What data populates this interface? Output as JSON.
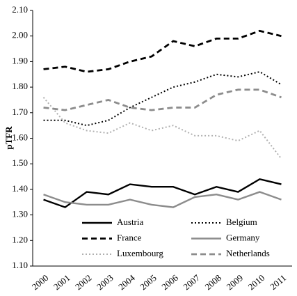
{
  "chart_data": {
    "type": "line",
    "y_label": "pTFR",
    "categories": [
      "2000",
      "2001",
      "2002",
      "2003",
      "2004",
      "2005",
      "2006",
      "2007",
      "2008",
      "2009",
      "2010",
      "2011"
    ],
    "series": [
      {
        "name": "Austria",
        "color": "#000000",
        "dash": "solid",
        "values": [
          1.36,
          1.33,
          1.39,
          1.38,
          1.42,
          1.41,
          1.41,
          1.38,
          1.41,
          1.39,
          1.44,
          1.42
        ]
      },
      {
        "name": "Belgium",
        "color": "#000000",
        "dash": "dotted",
        "values": [
          1.67,
          1.67,
          1.65,
          1.67,
          1.72,
          1.76,
          1.8,
          1.82,
          1.85,
          1.84,
          1.86,
          1.81
        ]
      },
      {
        "name": "France",
        "color": "#000000",
        "dash": "dashed",
        "values": [
          1.87,
          1.88,
          1.86,
          1.87,
          1.9,
          1.92,
          1.98,
          1.96,
          1.99,
          1.99,
          2.02,
          2.0
        ]
      },
      {
        "name": "Germany",
        "color": "#8c8c8c",
        "dash": "solid",
        "values": [
          1.38,
          1.35,
          1.34,
          1.34,
          1.36,
          1.34,
          1.33,
          1.37,
          1.38,
          1.36,
          1.39,
          1.36
        ]
      },
      {
        "name": "Luxembourg",
        "color": "#b0b0b0",
        "dash": "dotted",
        "values": [
          1.76,
          1.66,
          1.63,
          1.62,
          1.66,
          1.63,
          1.65,
          1.61,
          1.61,
          1.59,
          1.63,
          1.52
        ]
      },
      {
        "name": "Netherlands",
        "color": "#8c8c8c",
        "dash": "dashed",
        "values": [
          1.72,
          1.71,
          1.73,
          1.75,
          1.72,
          1.71,
          1.72,
          1.72,
          1.77,
          1.79,
          1.79,
          1.76
        ]
      }
    ],
    "ylim": [
      1.1,
      2.1
    ],
    "yticks": [
      {
        "value": 1.1,
        "label": "1.10"
      },
      {
        "value": 1.2,
        "label": "1.20"
      },
      {
        "value": 1.3,
        "label": "1.30"
      },
      {
        "value": 1.4,
        "label": "1.40"
      },
      {
        "value": 1.5,
        "label": "1.50"
      },
      {
        "value": 1.6,
        "label": "1.60"
      },
      {
        "value": 1.7,
        "label": "1.70"
      },
      {
        "value": 1.8,
        "label": "1.80"
      },
      {
        "value": 1.9,
        "label": "1.90"
      },
      {
        "value": 2.0,
        "label": "2.00"
      },
      {
        "value": 2.1,
        "label": "2.10"
      }
    ],
    "grid": false,
    "legend": "bottom"
  }
}
